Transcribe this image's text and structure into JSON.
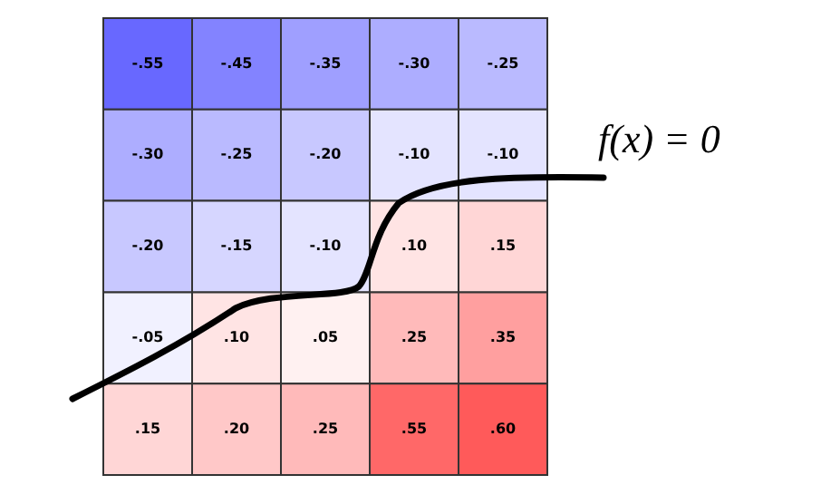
{
  "chart_data": {
    "type": "heatmap",
    "categories": [
      null,
      null,
      null,
      null,
      null
    ],
    "y_categories": [
      null,
      null,
      null,
      null,
      null
    ],
    "cells": [
      [
        -0.55,
        -0.45,
        -0.35,
        -0.3,
        -0.25
      ],
      [
        -0.3,
        -0.25,
        -0.2,
        -0.1,
        -0.1
      ],
      [
        -0.2,
        -0.15,
        -0.1,
        0.1,
        0.15
      ],
      [
        -0.05,
        0.1,
        0.05,
        0.25,
        0.35
      ],
      [
        0.15,
        0.2,
        0.25,
        0.55,
        0.6
      ]
    ],
    "cell_labels": [
      [
        "-.55",
        "-.45",
        "-.35",
        "-.30",
        "-.25"
      ],
      [
        "-.30",
        "-.25",
        "-.20",
        "-.10",
        "-.10"
      ],
      [
        "-.20",
        "-.15",
        "-.10",
        ".10",
        ".15"
      ],
      [
        "-.05",
        ".10",
        ".05",
        ".25",
        ".35"
      ],
      [
        ".15",
        ".20",
        ".25",
        ".55",
        ".60"
      ]
    ],
    "annotations": [
      "f(x) = 0"
    ]
  }
}
